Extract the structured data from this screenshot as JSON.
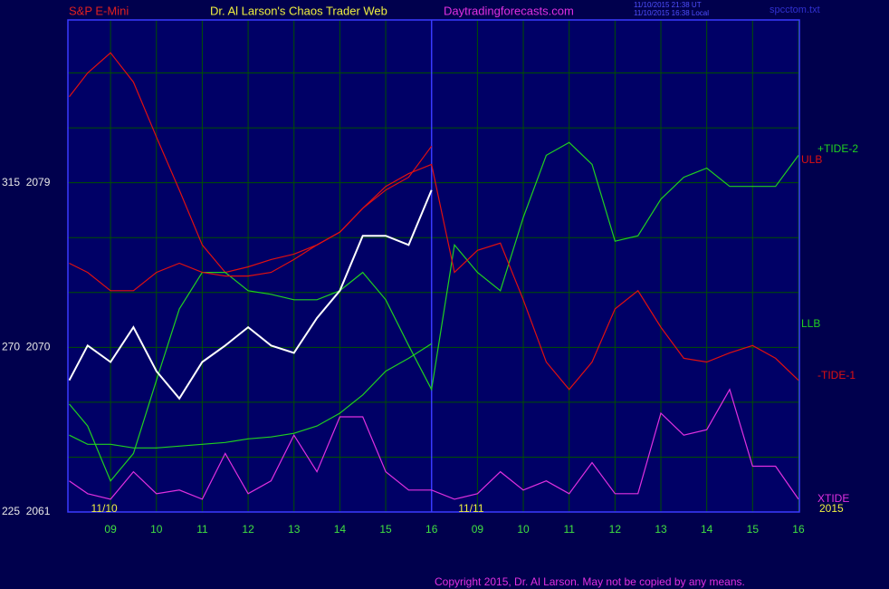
{
  "chart_data": {
    "type": "line",
    "header": {
      "instrument": "S&P E-Mini",
      "site_title": "Dr. Al Larson's Chaos Trader Web",
      "url": "Daytradingforecasts.com",
      "time_ut": "11/10/2015 21:38 UT",
      "time_local": "11/10/2015 16:38 Local",
      "file": "spcctom.txt"
    },
    "copyright": "Copyright 2015, Dr. Al Larson. May not be copied by any means.",
    "x": [
      8.1,
      8.5,
      9,
      9.5,
      10,
      10.5,
      11,
      11.5,
      12,
      12.5,
      13,
      13.5,
      14,
      14.5,
      15,
      15.5,
      16,
      16.5,
      17,
      17.5,
      18,
      18.5,
      19,
      19.5,
      20,
      20.5,
      21,
      21.5,
      22,
      22.5,
      23,
      23.5,
      24
    ],
    "xlim": [
      8.07,
      24.02
    ],
    "xticks": [
      {
        "value": 9,
        "label": "09"
      },
      10,
      11,
      12,
      13,
      14,
      15,
      16,
      {
        "value": 17,
        "label": "09"
      },
      {
        "value": 18,
        "label": "10"
      },
      {
        "value": 19,
        "label": "11"
      },
      {
        "value": 20,
        "label": "12"
      },
      {
        "value": 21,
        "label": "13"
      },
      {
        "value": 22,
        "label": "14"
      },
      {
        "value": 23,
        "label": "15"
      },
      {
        "value": 24,
        "label": "16"
      }
    ],
    "date_labels": [
      {
        "value": 9,
        "label": "11/10"
      },
      {
        "value": 17,
        "label": "11/11"
      }
    ],
    "year": "2015",
    "ylim": [
      2061,
      2087.9
    ],
    "yticks": [
      {
        "value": 2079,
        "label": "315  2079"
      },
      {
        "value": 2070,
        "label": "270  2070"
      },
      {
        "value": 2061,
        "label": "225  2061"
      }
    ],
    "ygrid": [
      2064,
      2067,
      2073,
      2076,
      2082,
      2085
    ],
    "vline": 16,
    "grid": true,
    "series": [
      {
        "name": "ULB",
        "color": "#e01010",
        "values": [
          2083.7,
          2085.0,
          2086.1,
          2084.5,
          2081.5,
          2078.6,
          2075.6,
          2074.1,
          2074.4,
          2074.8,
          2075.1,
          2075.6,
          2076.3,
          2077.6,
          2078.6,
          2079.3,
          2081.0,
          null,
          null,
          null,
          null,
          null,
          null,
          null,
          null,
          null,
          null,
          null,
          null,
          null,
          null,
          null,
          null
        ]
      },
      {
        "name": "LLB",
        "color": "#20d020",
        "values": [
          2065.2,
          2064.7,
          2064.7,
          2064.5,
          2064.5,
          2064.6,
          2064.7,
          2064.8,
          2065.0,
          2065.1,
          2065.3,
          2065.7,
          2066.4,
          2067.4,
          2068.7,
          2069.4,
          2070.2,
          null,
          null,
          null,
          null,
          null,
          null,
          null,
          null,
          null,
          null,
          null,
          null,
          null,
          null,
          null,
          null
        ]
      },
      {
        "name": "+TIDE-2",
        "color": "#20d020",
        "values": [
          2066.9,
          2065.7,
          2062.7,
          2064.2,
          2068.2,
          2072.1,
          2074.1,
          2074.1,
          2073.1,
          2072.9,
          2072.6,
          2072.6,
          2073.1,
          2074.1,
          2072.6,
          2070.1,
          2067.7,
          2075.6,
          2074.1,
          2073.1,
          2077.1,
          2080.5,
          2081.2,
          2080.0,
          2075.8,
          2076.1,
          2078.1,
          2079.3,
          2079.8,
          2078.8,
          2078.8,
          2078.8,
          2080.5
        ]
      },
      {
        "name": "-TIDE-1",
        "color": "#e01010",
        "values": [
          2074.6,
          2074.1,
          2073.1,
          2073.1,
          2074.1,
          2074.6,
          2074.1,
          2073.9,
          2073.9,
          2074.1,
          2074.8,
          2075.6,
          2076.3,
          2077.6,
          2078.8,
          2079.5,
          2080.0,
          2074.1,
          2075.3,
          2075.7,
          2072.6,
          2069.2,
          2067.7,
          2069.2,
          2072.1,
          2073.1,
          2071.1,
          2069.4,
          2069.2,
          2069.7,
          2070.1,
          2069.4,
          2068.2
        ]
      },
      {
        "name": "XTIDE",
        "color": "#e030e0",
        "values": [
          2062.7,
          2062.0,
          2061.7,
          2063.2,
          2062.0,
          2062.2,
          2061.7,
          2064.2,
          2062.0,
          2062.7,
          2065.2,
          2063.2,
          2066.2,
          2066.2,
          2063.2,
          2062.2,
          2062.2,
          2061.7,
          2062.0,
          2063.2,
          2062.2,
          2062.7,
          2062.0,
          2063.7,
          2062.0,
          2062.0,
          2066.4,
          2065.2,
          2065.5,
          2067.7,
          2063.5,
          2063.5,
          2061.7
        ]
      },
      {
        "color": "#ffffff",
        "values": [
          2068.2,
          2070.1,
          2069.2,
          2071.1,
          2068.7,
          2067.2,
          2069.2,
          2070.1,
          2071.1,
          2070.1,
          2069.7,
          2071.6,
          2073.1,
          2076.1,
          2076.1,
          2075.6,
          2078.6,
          null,
          null,
          null,
          null,
          null,
          null,
          null,
          null,
          null,
          null,
          null,
          null,
          null,
          null,
          null,
          null
        ]
      }
    ]
  }
}
